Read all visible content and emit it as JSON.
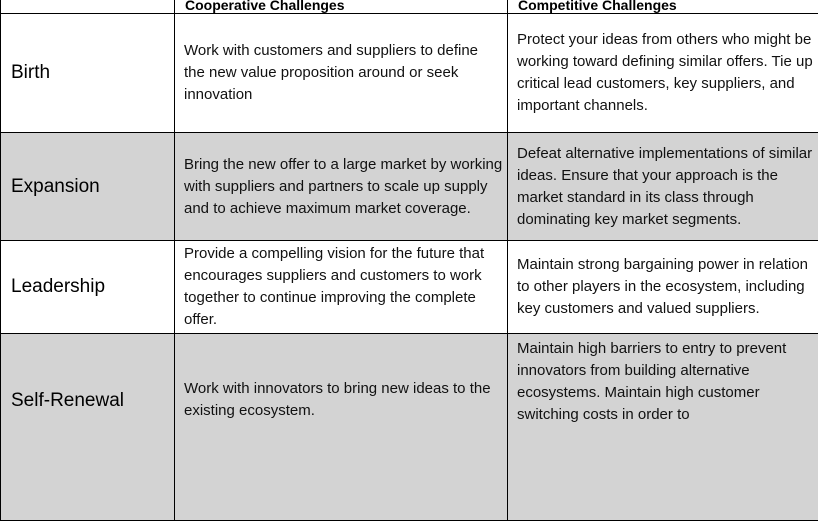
{
  "table": {
    "headers": [
      "",
      "Cooperative Challenges",
      "Competitive Challenges"
    ],
    "rows": [
      {
        "stage": "Birth",
        "cooperative": "Work with customers and suppliers to define the new value proposition around or seek innovation",
        "competitive": "Protect your ideas from others who might be working toward defining similar offers. Tie up critical lead customers, key suppliers, and important channels."
      },
      {
        "stage": "Expansion",
        "cooperative": "Bring the new offer to a large market by working with suppliers and partners to scale up supply and to achieve maximum market coverage.",
        "competitive": "Defeat alternative implementations of similar ideas. Ensure that your approach is the market standard in its class through dominating key market segments."
      },
      {
        "stage": "Leadership",
        "cooperative": "Provide a compelling vision for the future that encourages suppliers and customers to work together to continue improving the complete offer.",
        "competitive": "Maintain strong bargaining power in relation to other players in the ecosystem, including key customers and valued suppliers."
      },
      {
        "stage": "Self-Renewal",
        "cooperative": "Work with innovators to bring new ideas to the existing ecosystem.",
        "competitive": "Maintain high barriers to entry to prevent innovators from building alternative ecosystems. Maintain high customer switching costs in order to"
      }
    ]
  },
  "colors": {
    "gray_row": "#d3d3d3",
    "white_row": "#ffffff",
    "border": "#000000"
  }
}
